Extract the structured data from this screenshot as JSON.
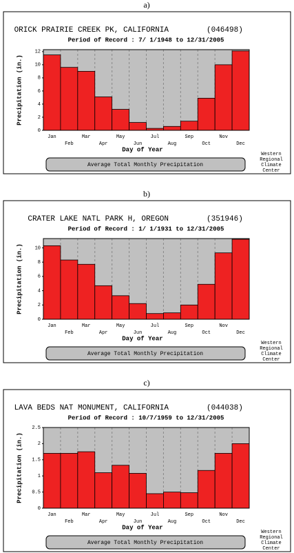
{
  "chart_data": [
    {
      "type": "bar",
      "label": "a)",
      "title": "ORICK PRAIRIE CREEK PK, CALIFORNIA",
      "station_id": "(046498)",
      "subtitle": "Period of Record : 7/ 1/1948 to 12/31/2005",
      "xlabel": "Day of Year",
      "ylabel": "Precipitation (in.)",
      "categories": [
        "Jan",
        "Feb",
        "Mar",
        "Apr",
        "May",
        "Jun",
        "Jul",
        "Aug",
        "Sep",
        "Oct",
        "Nov",
        "Dec"
      ],
      "values": [
        11.5,
        9.6,
        9.0,
        5.1,
        3.2,
        1.2,
        0.3,
        0.6,
        1.4,
        4.9,
        10.0,
        12.1
      ],
      "color": "#ee2222",
      "ylim": [
        0,
        12.3
      ],
      "yticks": [
        0,
        2,
        4,
        6,
        8,
        10,
        12
      ],
      "button": "Average Total Monthly Precipitation",
      "credit": [
        "Western",
        "Regional",
        "Climate",
        "Center"
      ]
    },
    {
      "type": "bar",
      "label": "b)",
      "title": "CRATER LAKE NATL PARK H, OREGON",
      "station_id": "(351946)",
      "subtitle": "Period of Record : 1/ 1/1931 to 12/31/2005",
      "xlabel": "Day of Year",
      "ylabel": "Precipitation (in.)",
      "categories": [
        "Jan",
        "Feb",
        "Mar",
        "Apr",
        "May",
        "Jun",
        "Jul",
        "Aug",
        "Sep",
        "Oct",
        "Nov",
        "Dec"
      ],
      "values": [
        10.3,
        8.3,
        7.7,
        4.7,
        3.3,
        2.2,
        0.8,
        0.9,
        2.0,
        4.9,
        9.3,
        11.2
      ],
      "color": "#ee2222",
      "ylim": [
        0,
        11.3
      ],
      "yticks": [
        0,
        2,
        4,
        6,
        8,
        10
      ],
      "button": "Average Total Monthly Precipitation",
      "credit": [
        "Western",
        "Regional",
        "Climate",
        "Center"
      ]
    },
    {
      "type": "bar",
      "label": "c)",
      "title": "LAVA BEDS NAT MONUMENT, CALIFORNIA",
      "station_id": "(044038)",
      "subtitle": "Period of Record : 10/7/1959 to 12/31/2005",
      "xlabel": "Day of Year",
      "ylabel": "Precipitation (in.)",
      "categories": [
        "Jan",
        "Feb",
        "Mar",
        "Apr",
        "May",
        "Jun",
        "Jul",
        "Aug",
        "Sep",
        "Oct",
        "Nov",
        "Dec"
      ],
      "values": [
        1.7,
        1.7,
        1.75,
        1.1,
        1.33,
        1.08,
        0.45,
        0.5,
        0.48,
        1.17,
        1.7,
        2.0
      ],
      "color": "#ee2222",
      "ylim": [
        0,
        2.5
      ],
      "yticks": [
        0,
        0.5,
        1,
        1.5,
        2,
        2.5
      ],
      "button": "Average Total Monthly Precipitation",
      "credit": [
        "Western",
        "Regional",
        "Climate",
        "Center"
      ]
    }
  ]
}
